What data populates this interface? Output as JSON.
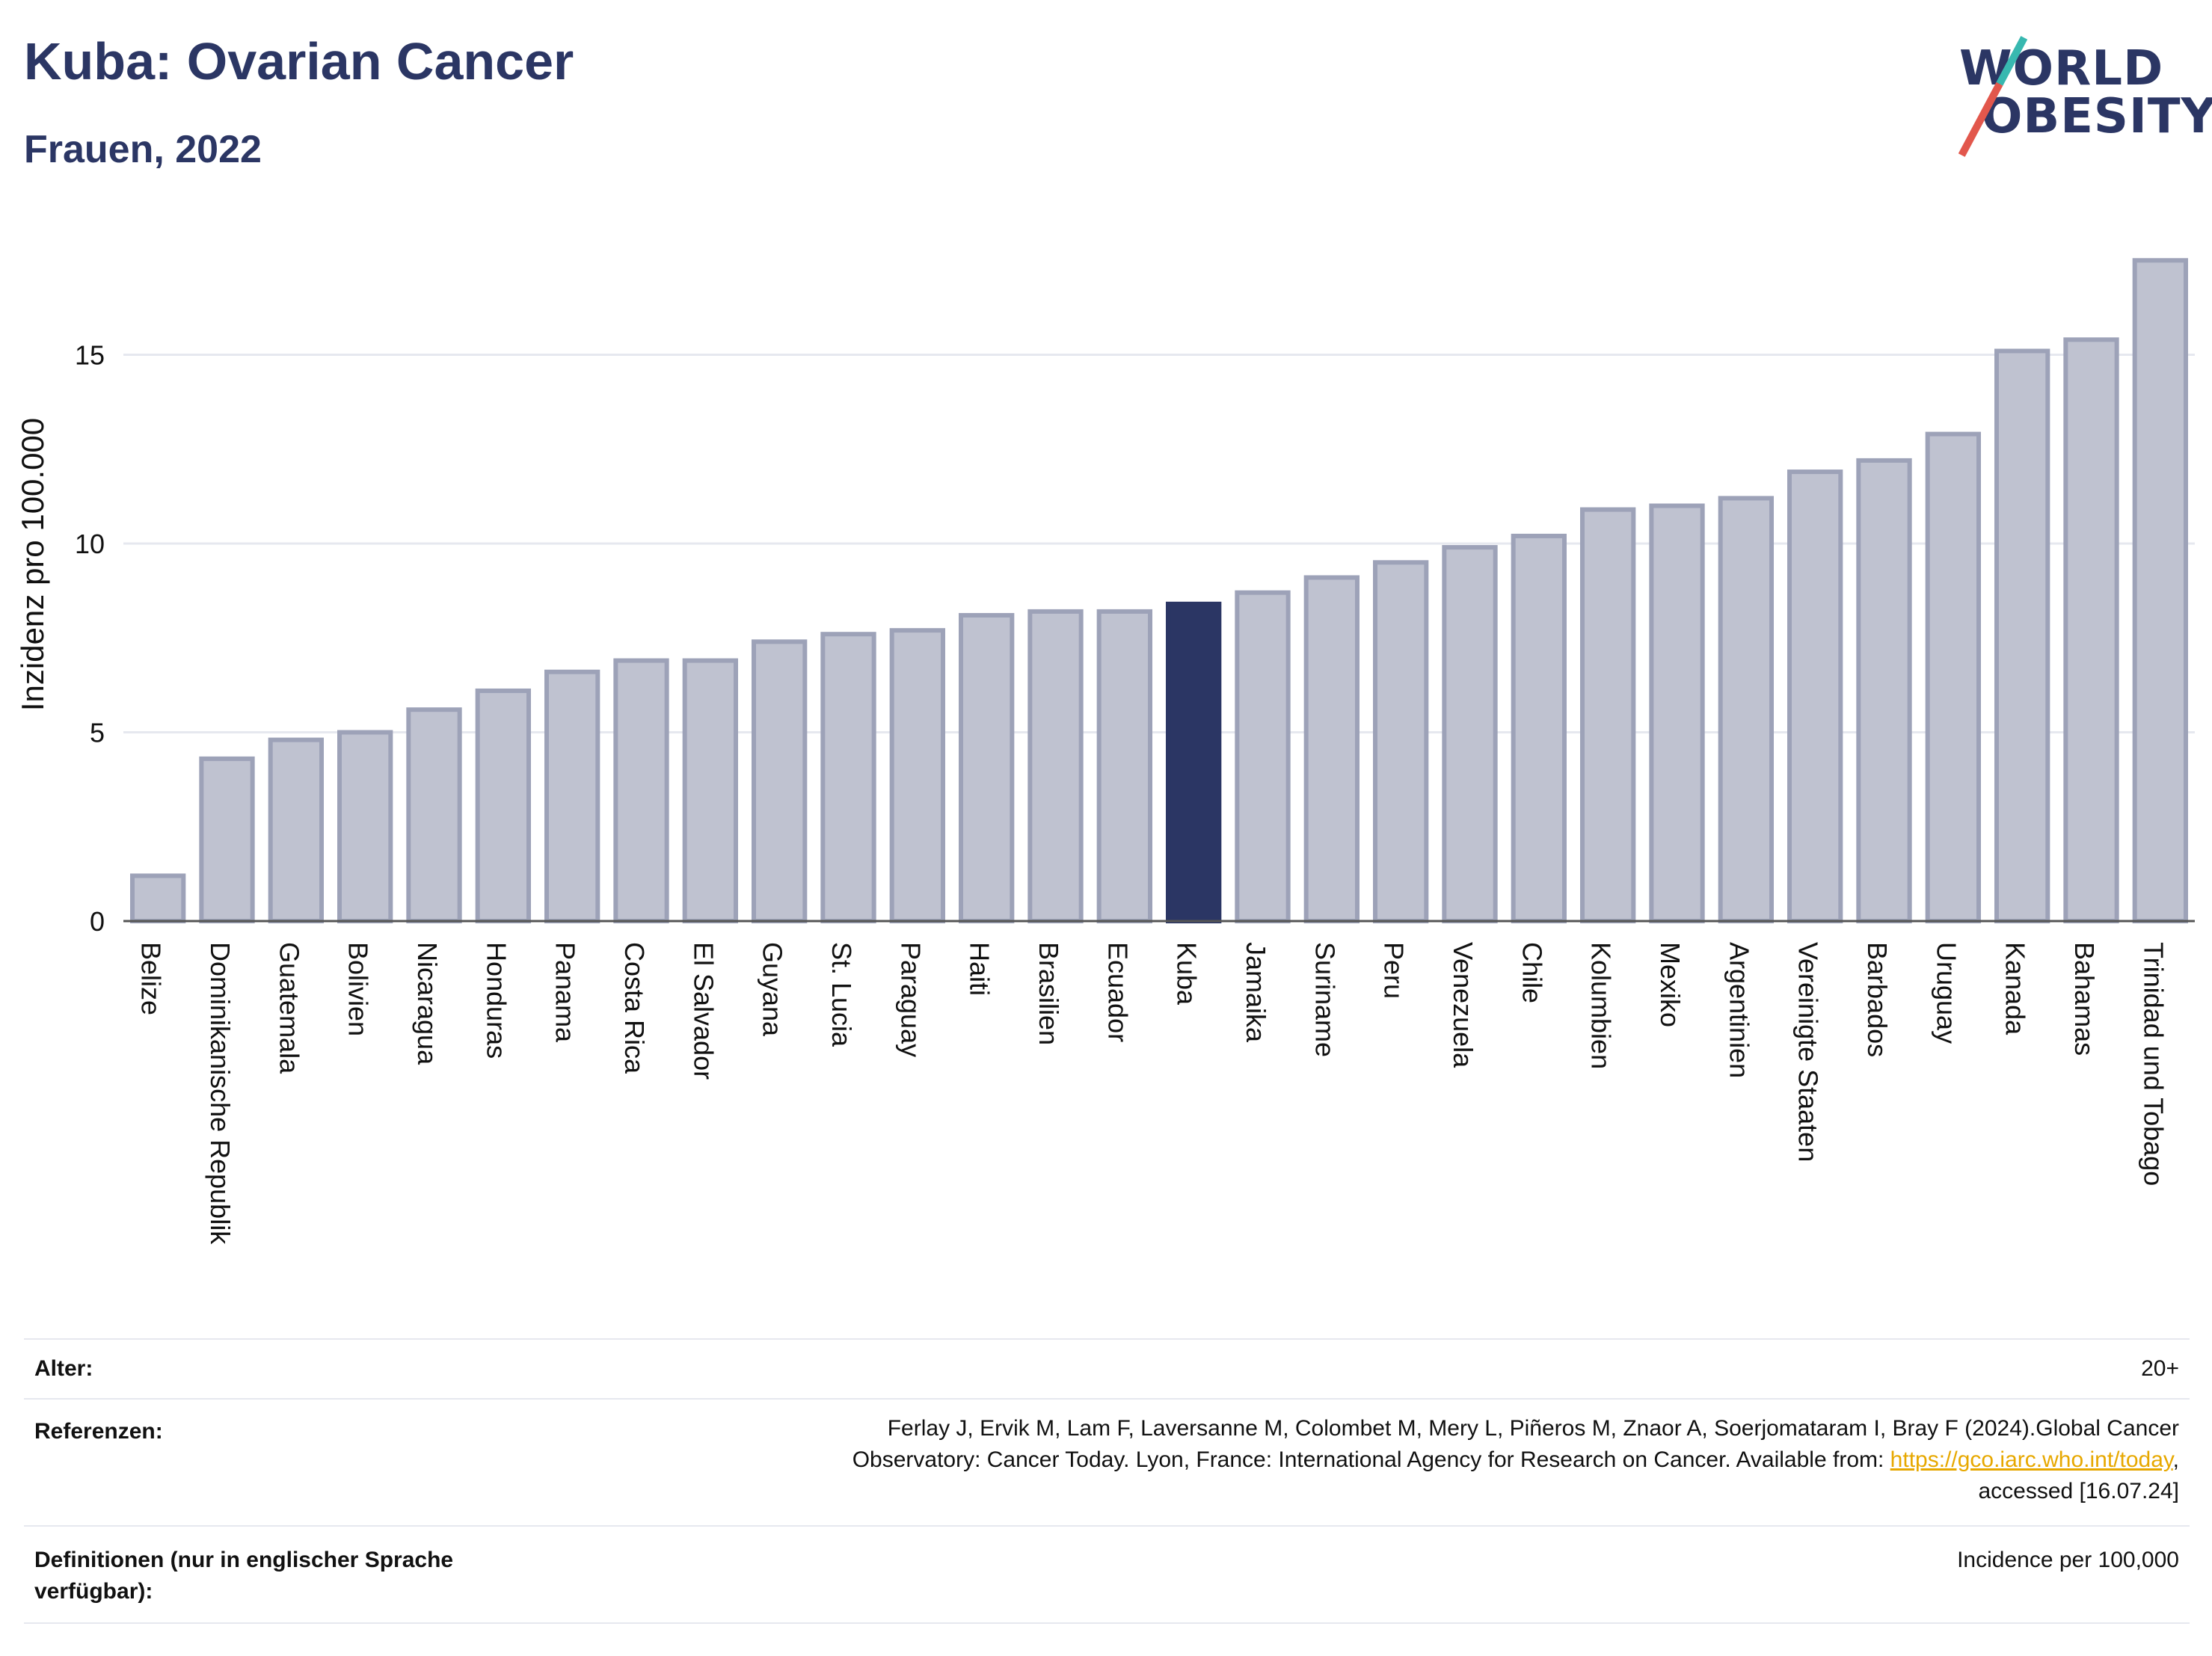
{
  "header": {
    "title": "Kuba: Ovarian Cancer",
    "subtitle": "Frauen, 2022"
  },
  "logo": {
    "line1": "WORLD",
    "line2": "OBESITY"
  },
  "colors": {
    "bar": "#bfc2d0",
    "bar_stroke": "#9da2b8",
    "highlight": "#2b3664",
    "grid": "#e6e8ef",
    "link": "#e7a800"
  },
  "chart_data": {
    "type": "bar",
    "ylabel": "Inzidenz pro 100.000",
    "xlabel": "",
    "ylim": [
      0,
      18
    ],
    "yticks": [
      0,
      5,
      10,
      15
    ],
    "grid": true,
    "highlight": "Kuba",
    "categories": [
      "Belize",
      "Dominikanische Republik",
      "Guatemala",
      "Bolivien",
      "Nicaragua",
      "Honduras",
      "Panama",
      "Costa Rica",
      "El Salvador",
      "Guyana",
      "St. Lucia",
      "Paraguay",
      "Haiti",
      "Brasilien",
      "Ecuador",
      "Kuba",
      "Jamaika",
      "Suriname",
      "Peru",
      "Venezuela",
      "Chile",
      "Kolumbien",
      "Mexiko",
      "Argentinien",
      "Vereinigte Staaten",
      "Barbados",
      "Uruguay",
      "Kanada",
      "Bahamas",
      "Trinidad und Tobago"
    ],
    "values": [
      1.2,
      4.3,
      4.8,
      5.0,
      5.6,
      6.1,
      6.6,
      6.9,
      6.9,
      7.4,
      7.6,
      7.7,
      8.1,
      8.2,
      8.2,
      8.4,
      8.7,
      9.1,
      9.5,
      9.9,
      10.2,
      10.9,
      11.0,
      11.2,
      11.9,
      12.2,
      12.9,
      15.1,
      15.4,
      17.5
    ]
  },
  "meta": {
    "age_label": "Alter:",
    "age_value": "20+",
    "ref_label": "Referenzen:",
    "ref_text_1": "Ferlay J, Ervik M, Lam F, Laversanne M, Colombet M, Mery L, Piñeros M, Znaor A, Soerjomataram I, Bray F (2024).Global Cancer",
    "ref_text_2": "Observatory: Cancer Today. Lyon, France: International Agency for Research on Cancer. Available from: ",
    "ref_link": "https://gco.iarc.who.int/today",
    "ref_text_3": ",",
    "ref_text_4": "accessed [16.07.24]",
    "def_label": "Definitionen (nur in englischer Sprache verfügbar):",
    "def_value": "Incidence per 100,000"
  }
}
